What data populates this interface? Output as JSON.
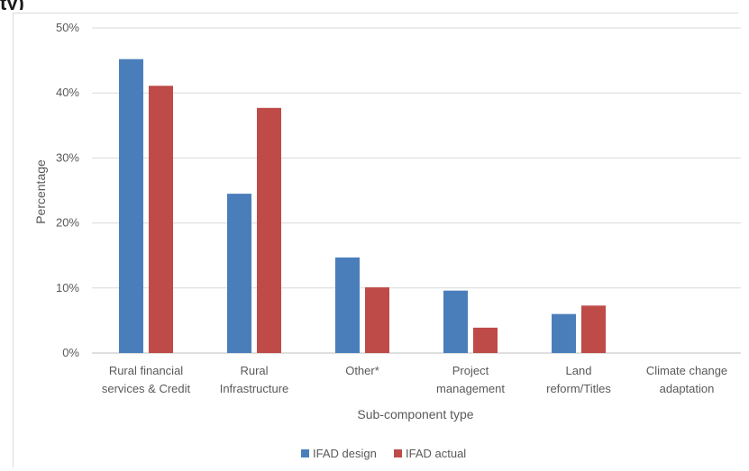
{
  "clipped_heading": "ty)",
  "chart_data": {
    "type": "bar",
    "title": "",
    "xlabel": "Sub-component type",
    "ylabel": "Percentage",
    "ylim": [
      0,
      50
    ],
    "y_ticks": [
      "0%",
      "10%",
      "20%",
      "30%",
      "40%",
      "50%"
    ],
    "grid": true,
    "legend_position": "bottom",
    "categories": [
      [
        "Rural financial",
        "services & Credit"
      ],
      [
        "Rural",
        "Infrastructure"
      ],
      [
        "Other*"
      ],
      [
        "Project",
        "management"
      ],
      [
        "Land",
        "reform/Titles"
      ],
      [
        "Climate change",
        "adaptation"
      ]
    ],
    "series": [
      {
        "name": "IFAD design",
        "color": "#4a7ebb",
        "values": [
          45.2,
          24.5,
          14.7,
          9.6,
          6.0,
          0
        ]
      },
      {
        "name": "IFAD actual",
        "color": "#be4b48",
        "values": [
          41.1,
          37.7,
          10.1,
          3.9,
          7.3,
          0
        ]
      }
    ]
  }
}
